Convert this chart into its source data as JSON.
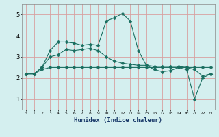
{
  "xlabel": "Humidex (Indice chaleur)",
  "bg_color": "#d4efef",
  "grid_color": "#d8a0a0",
  "line_color": "#1a6e60",
  "xlim": [
    -0.5,
    23.5
  ],
  "ylim": [
    0.5,
    5.5
  ],
  "yticks": [
    1,
    2,
    3,
    4,
    5
  ],
  "xticks": [
    0,
    1,
    2,
    3,
    4,
    5,
    6,
    7,
    8,
    9,
    10,
    11,
    12,
    13,
    14,
    15,
    16,
    17,
    18,
    19,
    20,
    21,
    22,
    23
  ],
  "line1_x": [
    0,
    1,
    2,
    3,
    4,
    5,
    6,
    7,
    8,
    9,
    10,
    11,
    12,
    13,
    14,
    15,
    16,
    17,
    18,
    19,
    20,
    21,
    22,
    23
  ],
  "line1_y": [
    2.2,
    2.2,
    2.4,
    2.5,
    2.5,
    2.5,
    2.5,
    2.5,
    2.5,
    2.5,
    2.5,
    2.5,
    2.5,
    2.5,
    2.5,
    2.5,
    2.5,
    2.5,
    2.5,
    2.5,
    2.5,
    2.5,
    2.5,
    2.5
  ],
  "line2_x": [
    0,
    1,
    2,
    3,
    4,
    5,
    6,
    7,
    8,
    9,
    10,
    11,
    12,
    13,
    14,
    15,
    16,
    17,
    18,
    19,
    20,
    21,
    22,
    23
  ],
  "line2_y": [
    2.2,
    2.2,
    2.5,
    3.3,
    3.7,
    3.7,
    3.65,
    3.55,
    3.6,
    3.55,
    4.7,
    4.85,
    5.05,
    4.7,
    3.3,
    2.6,
    2.4,
    2.3,
    2.35,
    2.5,
    2.4,
    1.0,
    2.0,
    2.2
  ],
  "line3_x": [
    0,
    1,
    2,
    3,
    4,
    5,
    6,
    7,
    8,
    9,
    10,
    11,
    12,
    13,
    14,
    15,
    16,
    17,
    18,
    19,
    20,
    21,
    22,
    23
  ],
  "line3_y": [
    2.2,
    2.2,
    2.5,
    3.0,
    3.1,
    3.35,
    3.3,
    3.35,
    3.4,
    3.3,
    3.0,
    2.8,
    2.7,
    2.65,
    2.6,
    2.6,
    2.55,
    2.55,
    2.55,
    2.55,
    2.5,
    2.4,
    2.1,
    2.2
  ]
}
